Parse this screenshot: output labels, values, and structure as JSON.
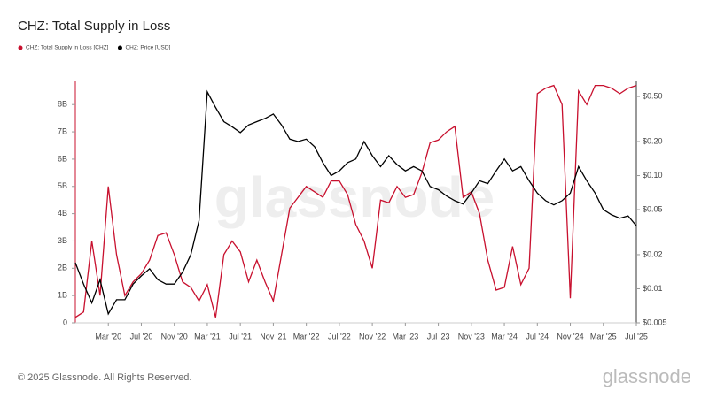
{
  "chart_data": {
    "type": "line",
    "title": "CHZ: Total Supply in Loss",
    "watermark": "glassnode",
    "footer": "© 2025 Glassnode. All Rights Reserved.",
    "logo": "glassnode",
    "x": [
      "2019-11",
      "2019-12",
      "2020-01",
      "2020-02",
      "2020-03",
      "2020-04",
      "2020-05",
      "2020-06",
      "2020-07",
      "2020-08",
      "2020-09",
      "2020-10",
      "2020-11",
      "2020-12",
      "2021-01",
      "2021-02",
      "2021-03",
      "2021-04",
      "2021-05",
      "2021-06",
      "2021-07",
      "2021-08",
      "2021-09",
      "2021-10",
      "2021-11",
      "2021-12",
      "2022-01",
      "2022-02",
      "2022-03",
      "2022-04",
      "2022-05",
      "2022-06",
      "2022-07",
      "2022-08",
      "2022-09",
      "2022-10",
      "2022-11",
      "2022-12",
      "2023-01",
      "2023-02",
      "2023-03",
      "2023-04",
      "2023-05",
      "2023-06",
      "2023-07",
      "2023-08",
      "2023-09",
      "2023-10",
      "2023-11",
      "2023-12",
      "2024-01",
      "2024-02",
      "2024-03",
      "2024-04",
      "2024-05",
      "2024-06",
      "2024-07",
      "2024-08",
      "2024-09",
      "2024-10",
      "2024-11",
      "2024-12",
      "2025-01",
      "2025-02",
      "2025-03",
      "2025-04",
      "2025-05",
      "2025-06",
      "2025-07"
    ],
    "xlim": [
      "2019-11",
      "2025-07"
    ],
    "xticks": [
      {
        "value": "2020-03",
        "label": "Mar '20"
      },
      {
        "value": "2020-07",
        "label": "Jul '20"
      },
      {
        "value": "2020-11",
        "label": "Nov '20"
      },
      {
        "value": "2021-03",
        "label": "Mar '21"
      },
      {
        "value": "2021-07",
        "label": "Jul '21"
      },
      {
        "value": "2021-11",
        "label": "Nov '21"
      },
      {
        "value": "2022-03",
        "label": "Mar '22"
      },
      {
        "value": "2022-07",
        "label": "Jul '22"
      },
      {
        "value": "2022-11",
        "label": "Nov '22"
      },
      {
        "value": "2023-03",
        "label": "Mar '23"
      },
      {
        "value": "2023-07",
        "label": "Jul '23"
      },
      {
        "value": "2023-11",
        "label": "Nov '23"
      },
      {
        "value": "2024-03",
        "label": "Mar '24"
      },
      {
        "value": "2024-07",
        "label": "Jul '24"
      },
      {
        "value": "2024-11",
        "label": "Nov '24"
      },
      {
        "value": "2025-03",
        "label": "Mar '25"
      },
      {
        "value": "2025-07",
        "label": "Jul '25"
      }
    ],
    "ylim": [
      0,
      8850000000.0
    ],
    "yticks": [
      0,
      {
        "value": 1000000000.0,
        "label": "1B"
      },
      {
        "value": 2000000000.0,
        "label": "2B"
      },
      {
        "value": 3000000000.0,
        "label": "3B"
      },
      {
        "value": 4000000000.0,
        "label": "4B"
      },
      {
        "value": 5000000000.0,
        "label": "5B"
      },
      {
        "value": 6000000000.0,
        "label": "6B"
      },
      {
        "value": 7000000000.0,
        "label": "7B"
      },
      {
        "value": 8000000000.0,
        "label": "8B"
      }
    ],
    "y2lim": [
      0.005,
      0.68
    ],
    "y2scale": "log",
    "y2ticks": [
      {
        "value": 0.005,
        "label": "$0.005"
      },
      {
        "value": 0.01,
        "label": "$0.01"
      },
      {
        "value": 0.02,
        "label": "$0.02"
      },
      {
        "value": 0.05,
        "label": "$0.05"
      },
      {
        "value": 0.1,
        "label": "$0.10"
      },
      {
        "value": 0.2,
        "label": "$0.20"
      },
      {
        "value": 0.5,
        "label": "$0.50"
      }
    ],
    "legend": "top-left",
    "series": [
      {
        "name": "CHZ: Total Supply in Loss [CHZ]",
        "color": "#c8102e",
        "values": [
          200000000.0,
          400000000.0,
          3000000000.0,
          1000000000.0,
          5000000000.0,
          2500000000.0,
          1000000000.0,
          1500000000.0,
          1800000000.0,
          2300000000.0,
          3200000000.0,
          3300000000.0,
          2500000000.0,
          1500000000.0,
          1300000000.0,
          800000000.0,
          1400000000.0,
          200000000.0,
          2500000000.0,
          3000000000.0,
          2600000000.0,
          1500000000.0,
          2300000000.0,
          1500000000.0,
          800000000.0,
          2500000000.0,
          4200000000.0,
          4600000000.0,
          5000000000.0,
          4800000000.0,
          4600000000.0,
          5200000000.0,
          5200000000.0,
          4700000000.0,
          3600000000.0,
          3000000000.0,
          2000000000.0,
          4500000000.0,
          4400000000.0,
          5000000000.0,
          4600000000.0,
          4700000000.0,
          5500000000.0,
          6600000000.0,
          6700000000.0,
          7000000000.0,
          7200000000.0,
          4600000000.0,
          4800000000.0,
          4000000000.0,
          2300000000.0,
          1200000000.0,
          1300000000.0,
          2800000000.0,
          1400000000.0,
          2000000000.0,
          8400000000.0,
          8600000000.0,
          8700000000.0,
          8000000000.0,
          900000000.0,
          8500000000.0,
          8000000000.0,
          8700000000.0,
          8700000000.0,
          8600000000.0,
          8400000000.0,
          8600000000.0,
          8700000000.0
        ]
      },
      {
        "name": "CHZ: Price [USD]",
        "color": "#000000",
        "axis": "y2",
        "values": [
          0.017,
          0.011,
          0.0075,
          0.012,
          0.006,
          0.008,
          0.008,
          0.011,
          0.013,
          0.015,
          0.012,
          0.011,
          0.011,
          0.014,
          0.02,
          0.04,
          0.55,
          0.4,
          0.3,
          0.27,
          0.24,
          0.28,
          0.3,
          0.32,
          0.35,
          0.28,
          0.21,
          0.2,
          0.21,
          0.18,
          0.13,
          0.1,
          0.11,
          0.13,
          0.14,
          0.2,
          0.15,
          0.12,
          0.15,
          0.125,
          0.11,
          0.12,
          0.11,
          0.08,
          0.075,
          0.066,
          0.06,
          0.056,
          0.07,
          0.09,
          0.085,
          0.11,
          0.14,
          0.11,
          0.12,
          0.09,
          0.07,
          0.06,
          0.055,
          0.06,
          0.07,
          0.12,
          0.09,
          0.07,
          0.05,
          0.045,
          0.042,
          0.044,
          0.036
        ]
      }
    ]
  }
}
